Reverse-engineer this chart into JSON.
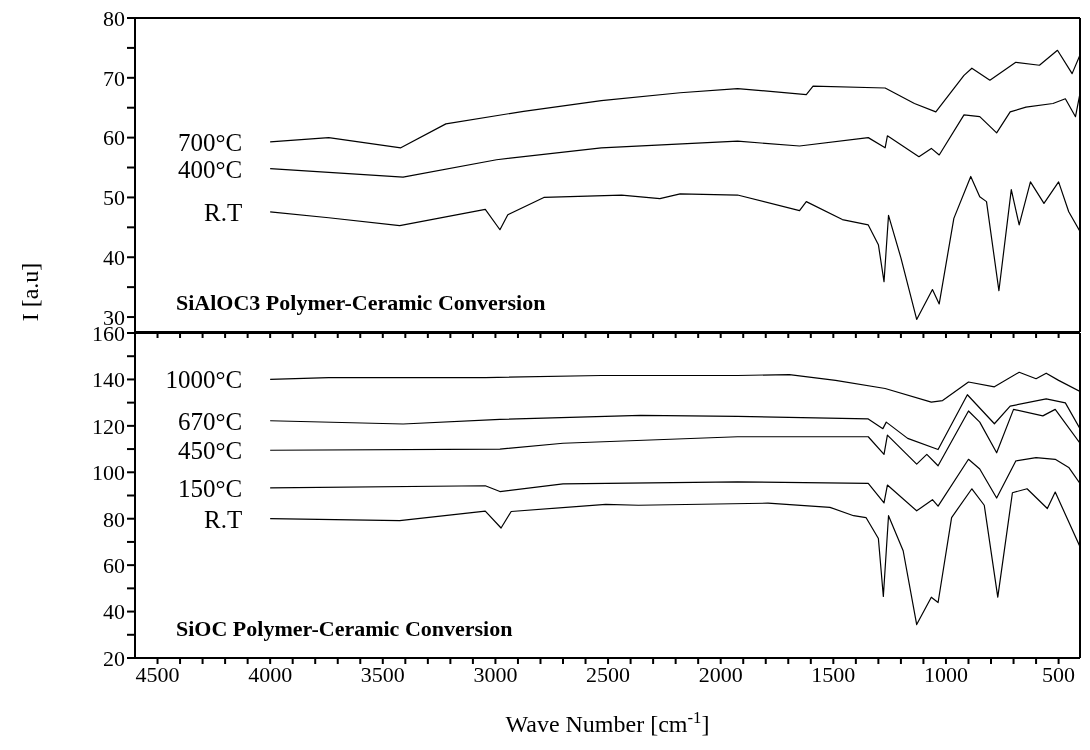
{
  "chart_data": [
    {
      "type": "line",
      "ylabel": "I [a.u]",
      "annotations": [
        "SiAlOC3 Polymer-Ceramic Conversion"
      ],
      "tick_labels": "y",
      "marker": "none",
      "line_style": "solid",
      "xlim": [
        4600,
        405
      ],
      "xticks": [
        4500,
        {
          "value": 4400,
          "label": null
        },
        {
          "value": 4300,
          "label": null
        },
        {
          "value": 4200,
          "label": null
        },
        {
          "value": 4100,
          "label": null
        },
        4000,
        {
          "value": 3900,
          "label": null
        },
        {
          "value": 3800,
          "label": null
        },
        {
          "value": 3700,
          "label": null
        },
        {
          "value": 3600,
          "label": null
        },
        3500,
        {
          "value": 3400,
          "label": null
        },
        {
          "value": 3300,
          "label": null
        },
        {
          "value": 3200,
          "label": null
        },
        {
          "value": 3100,
          "label": null
        },
        3000,
        {
          "value": 2900,
          "label": null
        },
        {
          "value": 2800,
          "label": null
        },
        {
          "value": 2700,
          "label": null
        },
        {
          "value": 2600,
          "label": null
        },
        2500,
        {
          "value": 2400,
          "label": null
        },
        {
          "value": 2300,
          "label": null
        },
        {
          "value": 2200,
          "label": null
        },
        {
          "value": 2100,
          "label": null
        },
        2000,
        {
          "value": 1900,
          "label": null
        },
        {
          "value": 1800,
          "label": null
        },
        {
          "value": 1700,
          "label": null
        },
        {
          "value": 1600,
          "label": null
        },
        1500,
        {
          "value": 1400,
          "label": null
        },
        {
          "value": 1300,
          "label": null
        },
        {
          "value": 1200,
          "label": null
        },
        {
          "value": 1100,
          "label": null
        },
        1000,
        {
          "value": 900,
          "label": null
        },
        {
          "value": 800,
          "label": null
        },
        {
          "value": 700,
          "label": null
        },
        {
          "value": 600,
          "label": null
        },
        500
      ],
      "ylim": [
        27.5,
        80
      ],
      "yticks": [
        30,
        {
          "value": 35,
          "label": null
        },
        40,
        {
          "value": 45,
          "label": null
        },
        50,
        {
          "value": 55,
          "label": null
        },
        60,
        {
          "value": 65,
          "label": null
        },
        70,
        {
          "value": 75,
          "label": null
        },
        80
      ],
      "series": [
        {
          "name": "700°C",
          "color": "#000000",
          "x": [
            4000,
            3740,
            3420,
            3220,
            2875,
            2530,
            2180,
            1925,
            1620,
            1590,
            1270,
            1140,
            1045,
            920,
            885,
            805,
            690,
            585,
            505,
            440,
            405
          ],
          "values": [
            59.3,
            60.0,
            58.3,
            62.3,
            64.4,
            66.2,
            67.5,
            68.2,
            67.2,
            68.6,
            68.3,
            65.7,
            64.3,
            70.4,
            71.6,
            69.6,
            72.6,
            72.1,
            74.6,
            70.7,
            73.8
          ]
        },
        {
          "name": "400°C",
          "color": "#000000",
          "x": [
            4000,
            3410,
            2995,
            2530,
            1925,
            1650,
            1345,
            1270,
            1260,
            1120,
            1065,
            1030,
            920,
            850,
            775,
            715,
            645,
            525,
            470,
            425,
            405
          ],
          "values": [
            54.8,
            53.4,
            56.3,
            58.3,
            59.4,
            58.6,
            60.0,
            58.3,
            60.3,
            56.8,
            58.2,
            57.1,
            63.8,
            63.5,
            60.8,
            64.3,
            65.1,
            65.7,
            66.5,
            63.5,
            67.4
          ]
        },
        {
          "name": "R.T",
          "color": "#000000",
          "x": [
            4000,
            3740,
            3425,
            3045,
            2980,
            2945,
            2785,
            2440,
            2270,
            2180,
            1925,
            1650,
            1620,
            1460,
            1345,
            1300,
            1275,
            1255,
            1200,
            1130,
            1060,
            1030,
            965,
            890,
            850,
            820,
            765,
            710,
            675,
            625,
            565,
            500,
            455,
            405
          ],
          "values": [
            47.6,
            46.6,
            45.3,
            48.0,
            44.6,
            47.1,
            50.0,
            50.4,
            49.8,
            50.6,
            50.4,
            47.8,
            49.3,
            46.3,
            45.4,
            42.1,
            35.9,
            47.0,
            39.9,
            29.6,
            34.6,
            32.2,
            46.5,
            53.5,
            50.1,
            49.3,
            34.4,
            51.3,
            45.4,
            52.6,
            49.0,
            52.6,
            47.6,
            44.3
          ]
        }
      ]
    },
    {
      "type": "line",
      "xlabel": "Wave Number [cm$^{-1}$]",
      "annotations": [
        "SiOC Polymer-Ceramic Conversion"
      ],
      "marker": "none",
      "line_style": "solid",
      "xlim": [
        4600,
        405
      ],
      "xticks": [
        4500,
        {
          "value": 4400,
          "label": null
        },
        {
          "value": 4300,
          "label": null
        },
        {
          "value": 4200,
          "label": null
        },
        {
          "value": 4100,
          "label": null
        },
        4000,
        {
          "value": 3900,
          "label": null
        },
        {
          "value": 3800,
          "label": null
        },
        {
          "value": 3700,
          "label": null
        },
        {
          "value": 3600,
          "label": null
        },
        3500,
        {
          "value": 3400,
          "label": null
        },
        {
          "value": 3300,
          "label": null
        },
        {
          "value": 3200,
          "label": null
        },
        {
          "value": 3100,
          "label": null
        },
        3000,
        {
          "value": 2900,
          "label": null
        },
        {
          "value": 2800,
          "label": null
        },
        {
          "value": 2700,
          "label": null
        },
        {
          "value": 2600,
          "label": null
        },
        2500,
        {
          "value": 2400,
          "label": null
        },
        {
          "value": 2300,
          "label": null
        },
        {
          "value": 2200,
          "label": null
        },
        {
          "value": 2100,
          "label": null
        },
        2000,
        {
          "value": 1900,
          "label": null
        },
        {
          "value": 1800,
          "label": null
        },
        {
          "value": 1700,
          "label": null
        },
        {
          "value": 1600,
          "label": null
        },
        1500,
        {
          "value": 1400,
          "label": null
        },
        {
          "value": 1300,
          "label": null
        },
        {
          "value": 1200,
          "label": null
        },
        {
          "value": 1100,
          "label": null
        },
        1000,
        {
          "value": 900,
          "label": null
        },
        {
          "value": 800,
          "label": null
        },
        {
          "value": 700,
          "label": null
        },
        {
          "value": 600,
          "label": null
        },
        500
      ],
      "ylim": [
        20,
        160
      ],
      "yticks": [
        20,
        {
          "value": 30,
          "label": null
        },
        40,
        {
          "value": 50,
          "label": null
        },
        60,
        {
          "value": 70,
          "label": null
        },
        80,
        {
          "value": 90,
          "label": null
        },
        100,
        {
          "value": 110,
          "label": null
        },
        120,
        {
          "value": 130,
          "label": null
        },
        140,
        {
          "value": 150,
          "label": null
        },
        160
      ],
      "series": [
        {
          "name": "1000°C",
          "color": "#000000",
          "x": [
            4000,
            3740,
            3045,
            2530,
            1925,
            1695,
            1490,
            1270,
            1065,
            1015,
            900,
            785,
            675,
            600,
            555,
            500,
            405
          ],
          "values": [
            140.0,
            140.8,
            140.8,
            141.7,
            141.7,
            142.1,
            139.6,
            136.1,
            130.2,
            130.9,
            138.9,
            136.8,
            143.1,
            140.3,
            142.7,
            139.6,
            134.8
          ]
        },
        {
          "name": "670°C",
          "color": "#000000",
          "x": [
            4000,
            3410,
            2980,
            2355,
            1925,
            1345,
            1280,
            1265,
            1170,
            1035,
            905,
            785,
            715,
            555,
            470,
            405
          ],
          "values": [
            122.2,
            120.8,
            122.8,
            124.5,
            124.1,
            123.0,
            118.8,
            121.6,
            114.6,
            109.8,
            133.4,
            120.9,
            128.5,
            131.6,
            129.9,
            118.8
          ]
        },
        {
          "name": "450°C",
          "color": "#000000",
          "x": [
            4000,
            2980,
            2700,
            1925,
            1345,
            1275,
            1260,
            1130,
            1085,
            1035,
            900,
            850,
            775,
            700,
            570,
            515,
            405
          ],
          "values": [
            109.5,
            110.0,
            112.5,
            115.3,
            115.3,
            107.7,
            116.0,
            103.5,
            107.7,
            102.8,
            126.4,
            121.6,
            108.4,
            127.1,
            124.3,
            127.1,
            112.5
          ]
        },
        {
          "name": "150°C",
          "color": "#000000",
          "x": [
            4000,
            3045,
            2980,
            2700,
            1925,
            1345,
            1275,
            1260,
            1130,
            1060,
            1035,
            900,
            850,
            775,
            690,
            600,
            515,
            455,
            405
          ],
          "values": [
            93.3,
            94.2,
            91.7,
            95.0,
            95.9,
            95.2,
            86.8,
            94.5,
            83.4,
            88.2,
            85.4,
            105.6,
            101.4,
            88.9,
            104.9,
            106.3,
            105.6,
            102.1,
            95.2
          ]
        },
        {
          "name": "R.T",
          "color": "#000000",
          "x": [
            4000,
            3425,
            3045,
            2975,
            2930,
            2510,
            2365,
            1790,
            1515,
            1410,
            1355,
            1300,
            1278,
            1255,
            1190,
            1130,
            1065,
            1035,
            975,
            885,
            830,
            770,
            705,
            640,
            550,
            515,
            405
          ],
          "values": [
            80.0,
            79.2,
            83.3,
            76.0,
            83.1,
            86.2,
            85.8,
            86.7,
            84.9,
            81.3,
            80.5,
            71.5,
            46.5,
            81.3,
            66.2,
            34.4,
            46.2,
            43.9,
            80.5,
            92.9,
            85.8,
            46.2,
            91.2,
            92.9,
            84.4,
            91.5,
            67.9
          ]
        }
      ]
    }
  ]
}
